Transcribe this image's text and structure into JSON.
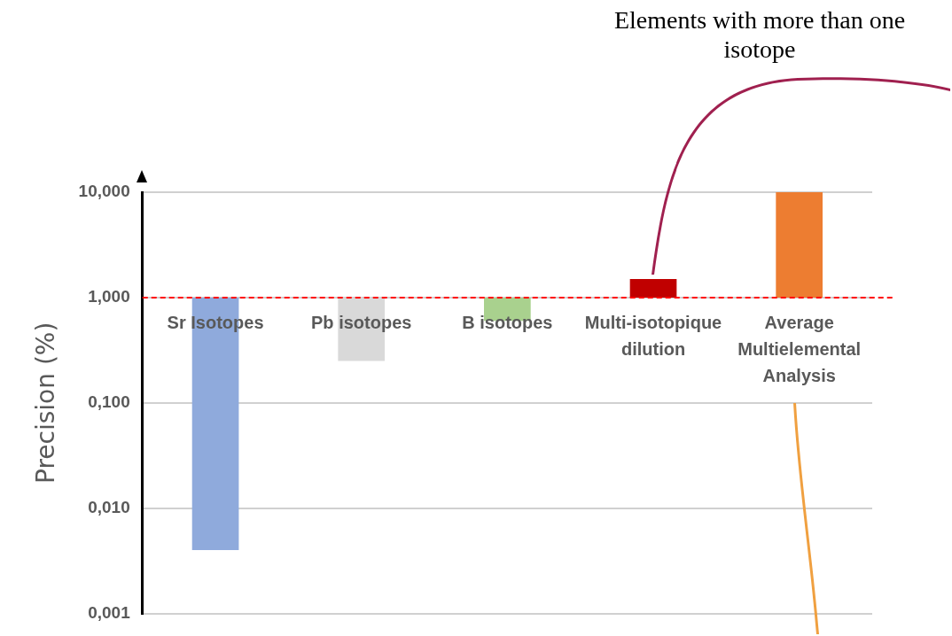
{
  "chart_data": {
    "type": "bar",
    "ylabel": "Precision (%)",
    "categories": [
      "Sr Isotopes",
      "Pb isotopes",
      "B isotopes",
      "Multi-isotopique dilution",
      "Average Multielemental Analysis"
    ],
    "base": [
      1,
      1,
      1,
      1,
      1
    ],
    "values": [
      -0.996,
      -0.75,
      -0.4,
      0.5,
      9
    ],
    "colors": [
      "#8faadc",
      "#d9d9d9",
      "#a9d18e",
      "#c00000",
      "#ed7d31"
    ],
    "log": true,
    "ylim": [
      0.001,
      10
    ],
    "yticks": [
      {
        "value": 0.001,
        "label": "0,001"
      },
      {
        "value": 0.01,
        "label": "0,010"
      },
      {
        "value": 0.1,
        "label": "0,100"
      },
      {
        "value": 1,
        "label": "1,000"
      },
      {
        "value": 10,
        "label": "10,000"
      }
    ],
    "grid": "y",
    "ref_lines": [
      {
        "axis": "y",
        "value": 1,
        "color": "#ff0000",
        "line_style": "dashed"
      }
    ],
    "annotations": [
      "Elements with more than one isotope"
    ]
  }
}
